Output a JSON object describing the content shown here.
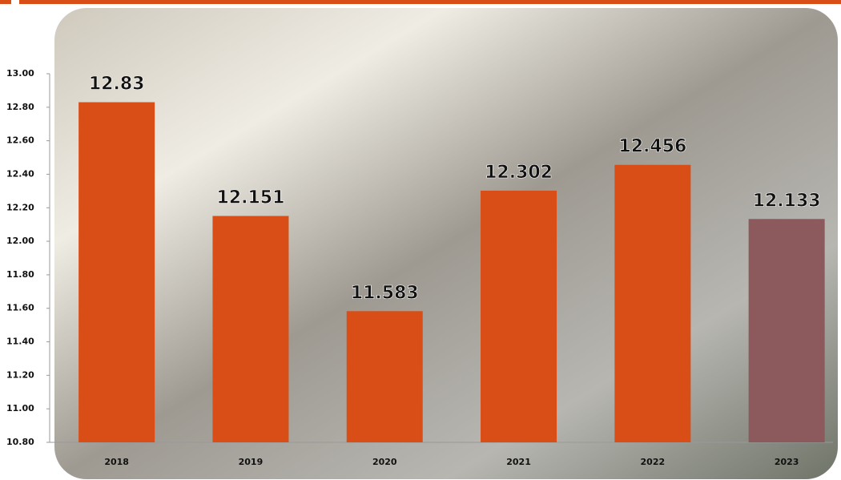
{
  "chart_data": {
    "type": "bar",
    "categories": [
      "2018",
      "2019",
      "2020",
      "2021",
      "2022",
      "2023"
    ],
    "values": [
      12.83,
      12.151,
      11.583,
      12.302,
      12.456,
      12.133
    ],
    "colors": [
      "#d94e16",
      "#d94e16",
      "#d94e16",
      "#d94e16",
      "#d94e16",
      "#8c5a5c"
    ],
    "ylim": [
      10.8,
      13.0
    ],
    "yticks": [
      {
        "value": 10.8,
        "label": "10.80"
      },
      {
        "value": 11.0,
        "label": "11.00"
      },
      {
        "value": 11.2,
        "label": "11.20"
      },
      {
        "value": 11.4,
        "label": "11.40"
      },
      {
        "value": 11.6,
        "label": "11.60"
      },
      {
        "value": 11.8,
        "label": "11.80"
      },
      {
        "value": 12.0,
        "label": "12.00"
      },
      {
        "value": 12.2,
        "label": "12.20"
      },
      {
        "value": 12.4,
        "label": "12.40"
      },
      {
        "value": 12.6,
        "label": "12.60"
      },
      {
        "value": 12.8,
        "label": "12.80"
      },
      {
        "value": 13.0,
        "label": "13.00"
      }
    ],
    "grid": false
  }
}
